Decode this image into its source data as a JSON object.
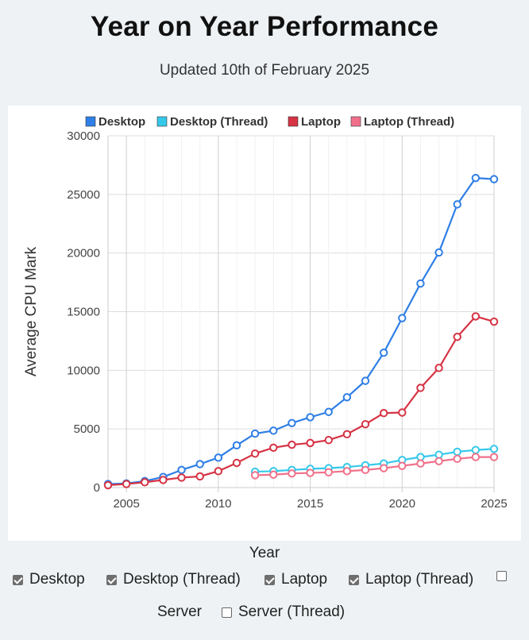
{
  "header": {
    "title": "Year on Year Performance",
    "subtitle": "Updated 10th of February 2025"
  },
  "chart_data": {
    "type": "line",
    "title": "",
    "xlabel": "Year",
    "ylabel": "Average CPU Mark",
    "xlim": [
      2004,
      2025
    ],
    "ylim": [
      0,
      30000
    ],
    "xticks": [
      2005,
      2010,
      2015,
      2020,
      2025
    ],
    "yticks": [
      0,
      5000,
      10000,
      15000,
      20000,
      25000,
      30000
    ],
    "grid": true,
    "legend_position": "top",
    "series": [
      {
        "name": "Desktop",
        "color": "#2f7fe6",
        "x": [
          2004,
          2005,
          2006,
          2007,
          2008,
          2009,
          2010,
          2011,
          2012,
          2013,
          2014,
          2015,
          2016,
          2017,
          2018,
          2019,
          2020,
          2021,
          2022,
          2023,
          2024,
          2025
        ],
        "values": [
          300,
          350,
          550,
          900,
          1500,
          2000,
          2550,
          3600,
          4600,
          4850,
          5500,
          6000,
          6450,
          7700,
          9100,
          11500,
          14450,
          17400,
          20050,
          24150,
          26400,
          26300
        ]
      },
      {
        "name": "Desktop (Thread)",
        "color": "#36c8ea",
        "x": [
          2012,
          2013,
          2014,
          2015,
          2016,
          2017,
          2018,
          2019,
          2020,
          2021,
          2022,
          2023,
          2024,
          2025
        ],
        "values": [
          1350,
          1400,
          1500,
          1600,
          1650,
          1750,
          1900,
          2050,
          2350,
          2600,
          2800,
          3050,
          3200,
          3300
        ]
      },
      {
        "name": "Laptop",
        "color": "#d63344",
        "x": [
          2004,
          2005,
          2006,
          2007,
          2008,
          2009,
          2010,
          2011,
          2012,
          2013,
          2014,
          2015,
          2016,
          2017,
          2018,
          2019,
          2020,
          2021,
          2022,
          2023,
          2024,
          2025
        ],
        "values": [
          200,
          300,
          450,
          650,
          850,
          950,
          1400,
          2100,
          2900,
          3400,
          3650,
          3800,
          4050,
          4550,
          5400,
          6350,
          6400,
          8500,
          10200,
          12850,
          14600,
          14150
        ]
      },
      {
        "name": "Laptop (Thread)",
        "color": "#f0708a",
        "x": [
          2012,
          2013,
          2014,
          2015,
          2016,
          2017,
          2018,
          2019,
          2020,
          2021,
          2022,
          2023,
          2024,
          2025
        ],
        "values": [
          1050,
          1100,
          1200,
          1250,
          1300,
          1400,
          1500,
          1650,
          1850,
          2050,
          2250,
          2450,
          2600,
          2600
        ]
      }
    ]
  },
  "controls": {
    "items": [
      {
        "label": "Desktop",
        "checked": true
      },
      {
        "label": "Desktop (Thread)",
        "checked": true
      },
      {
        "label": "Laptop",
        "checked": true
      },
      {
        "label": "Laptop (Thread)",
        "checked": true
      },
      {
        "label": "Server",
        "checked": false
      },
      {
        "label": "Server (Thread)",
        "checked": false
      }
    ]
  }
}
